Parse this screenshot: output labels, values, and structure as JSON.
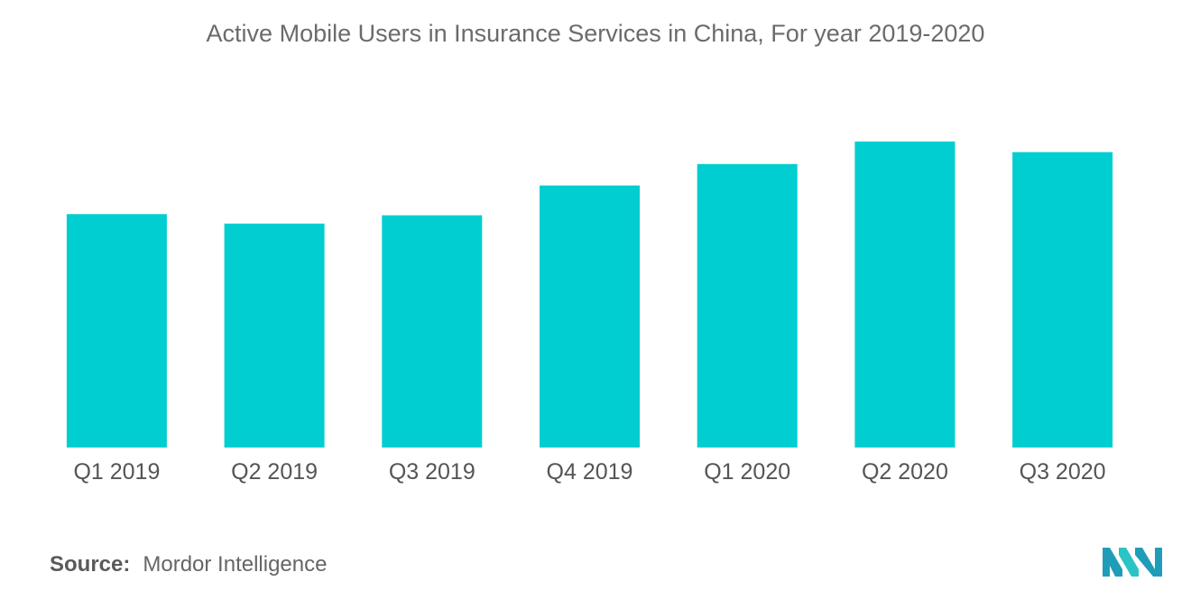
{
  "chart_data": {
    "type": "bar",
    "title": "Active Mobile Users in Insurance Services in China, For year 2019-2020",
    "categories": [
      "Q1 2019",
      "Q2 2019",
      "Q3 2019",
      "Q4 2019",
      "Q1 2020",
      "Q2 2020",
      "Q3 2020"
    ],
    "values": [
      196,
      188,
      195,
      220,
      238,
      257,
      248
    ],
    "xlabel": "",
    "ylabel": "",
    "ylim": [
      0,
      300
    ],
    "grid": false,
    "legend": "none",
    "bar_color": "#00CED1"
  },
  "footer": {
    "source_label": "Source:",
    "source_value": "Mordor Intelligence"
  },
  "logo": {
    "name": "mordor-intelligence-logo",
    "colors": [
      "#1F9DB8",
      "#2BC4C4"
    ]
  }
}
